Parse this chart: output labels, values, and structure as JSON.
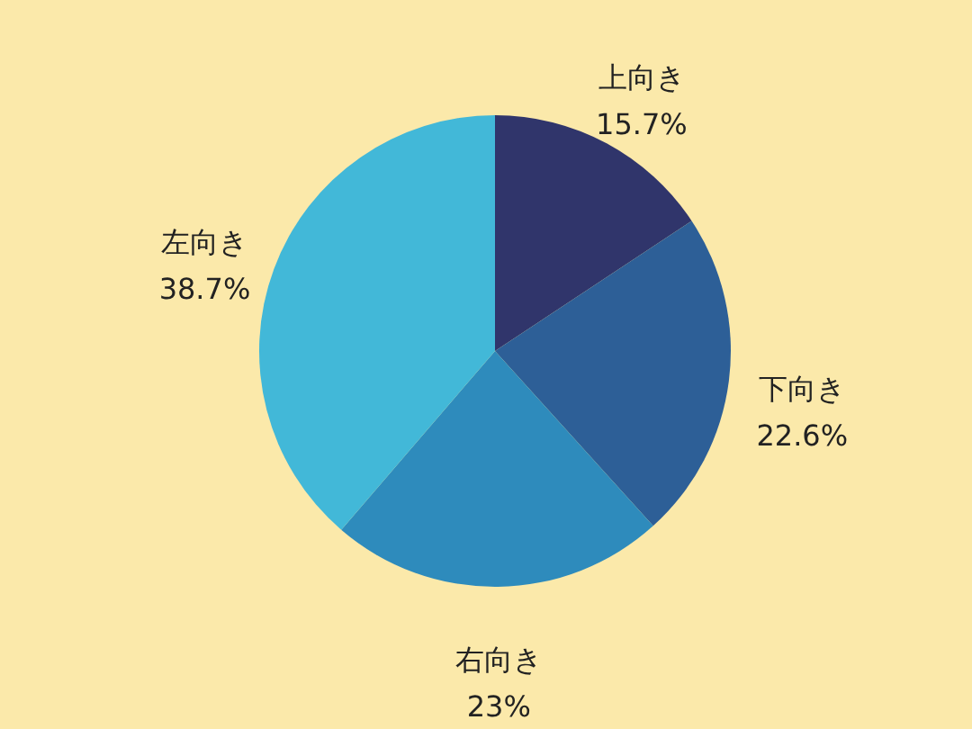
{
  "chart_data": {
    "type": "pie",
    "categories": [
      "上向き",
      "下向き",
      "右向き",
      "左向き"
    ],
    "values": [
      15.7,
      22.6,
      23,
      38.7
    ],
    "value_labels": [
      "15.7%",
      "22.6%",
      "23%",
      "38.7%"
    ],
    "colors": [
      "#30356b",
      "#2d5f97",
      "#2e8bbc",
      "#42b8d8"
    ]
  }
}
